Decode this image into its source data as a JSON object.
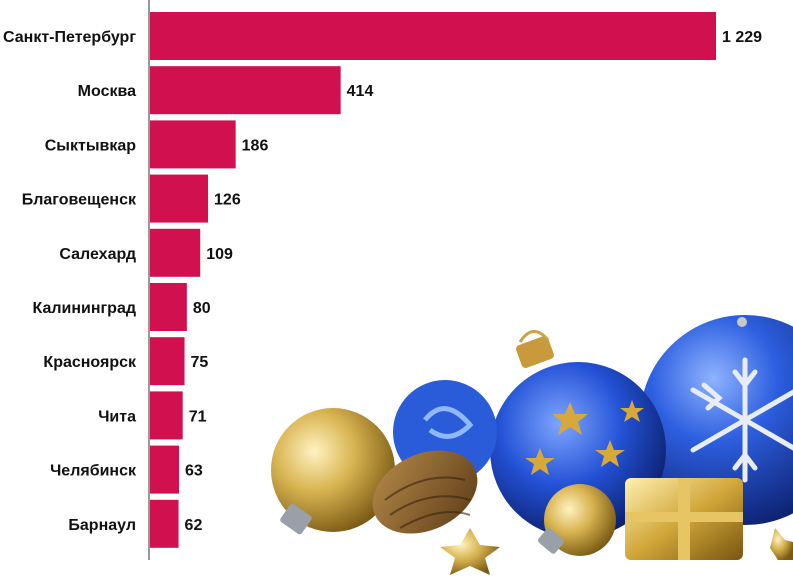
{
  "chart_data": {
    "type": "bar",
    "orientation": "horizontal",
    "categories": [
      "Санкт-Петербург",
      "Москва",
      "Сыктывкар",
      "Благовещенск",
      "Салехард",
      "Калининград",
      "Красноярск",
      "Чита",
      "Челябинск",
      "Барнаул"
    ],
    "values": [
      1229,
      414,
      186,
      126,
      109,
      80,
      75,
      71,
      63,
      62
    ],
    "value_labels": [
      "1 229",
      "414",
      "186",
      "126",
      "109",
      "80",
      "75",
      "71",
      "63",
      "62"
    ],
    "title": "",
    "xlabel": "",
    "ylabel": "",
    "xlim": [
      0,
      1229
    ],
    "grid": false,
    "bar_color": "#d0104f"
  },
  "decoration": {
    "image": "christmas-ornaments",
    "colors": {
      "blue": "#1f4fd1",
      "gold": "#c9a23a",
      "silver": "#b9bcc4"
    }
  }
}
